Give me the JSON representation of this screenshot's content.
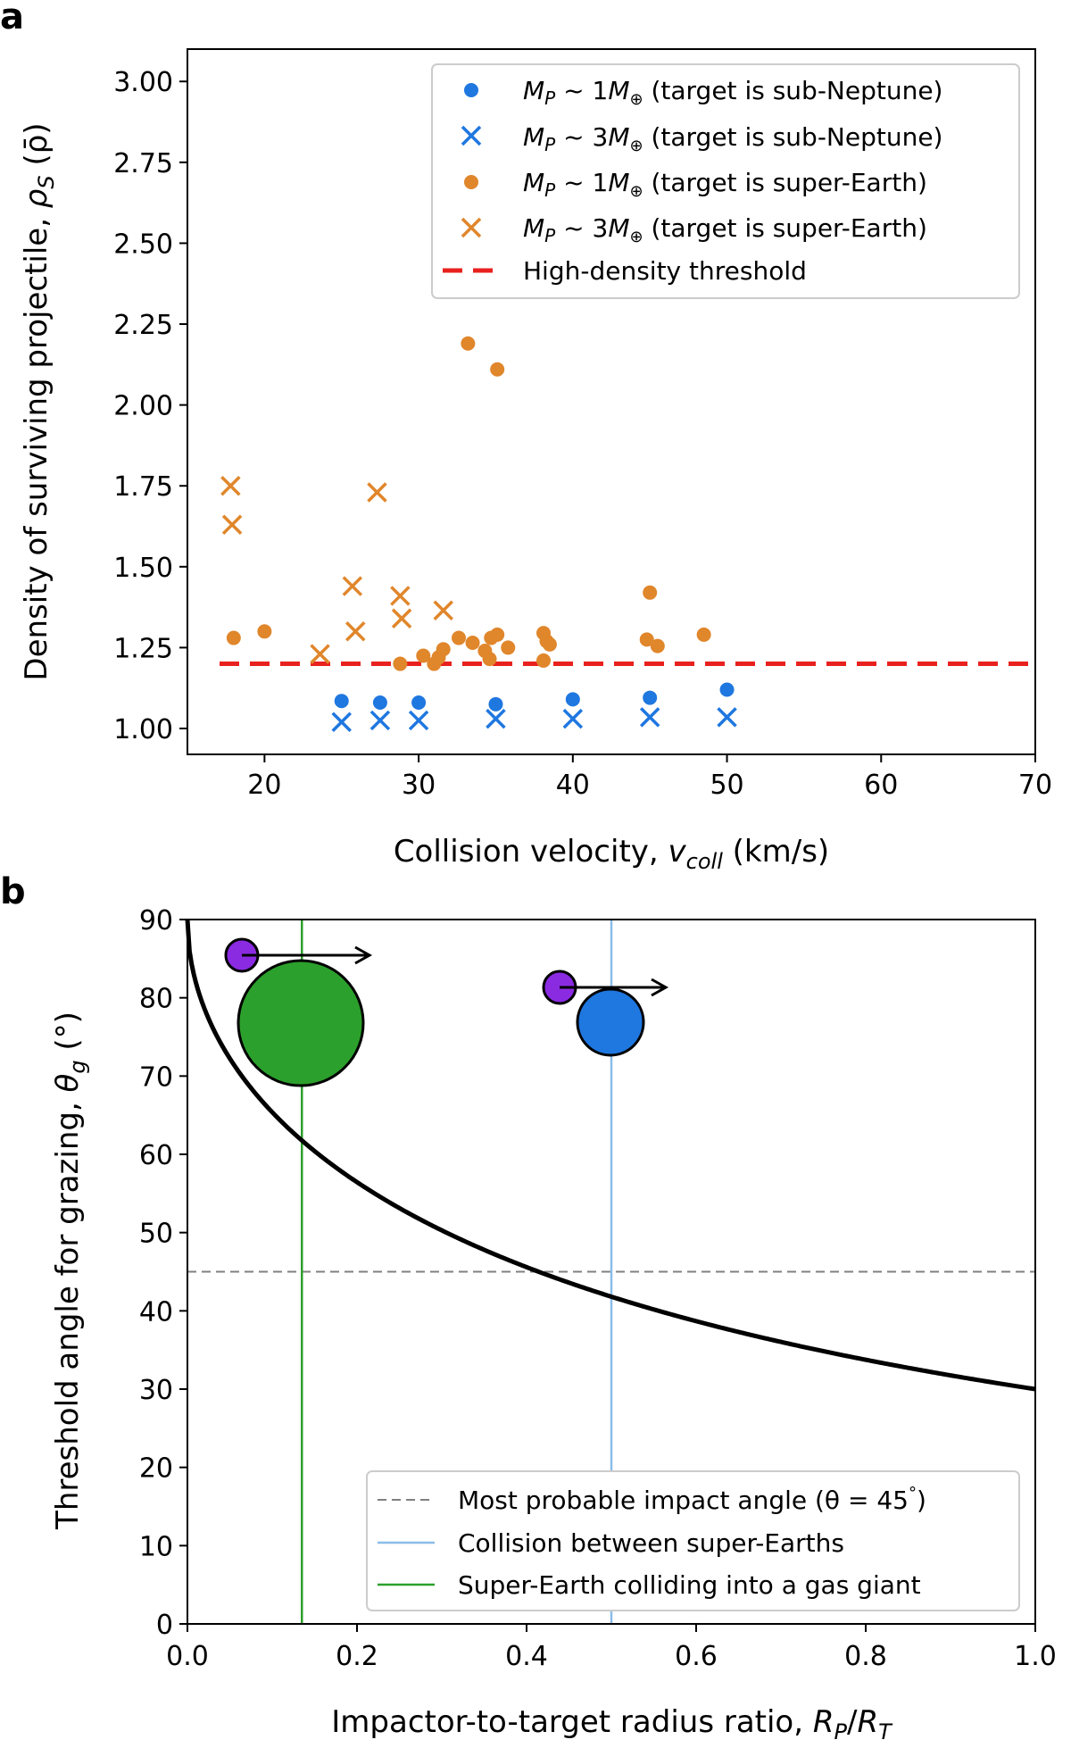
{
  "chart_data": [
    {
      "panel": "a",
      "type": "scatter",
      "xlabel": "Collision velocity, ",
      "xlabel_math": "v",
      "xlabel_sub": "coll",
      "xlabel_unit": " (km/s)",
      "ylabel": "Density of surviving projectile, ",
      "ylabel_math": "ρ",
      "ylabel_sub": "S",
      "ylabel_unit": " (ρ̄)",
      "xlim": [
        15,
        70
      ],
      "ylim": [
        0.92,
        3.1
      ],
      "xticks": [
        20,
        30,
        40,
        50,
        60,
        70
      ],
      "yticks": [
        1.0,
        1.25,
        1.5,
        1.75,
        2.0,
        2.25,
        2.5,
        2.75,
        3.0
      ],
      "yticklabels": [
        "1.00",
        "1.25",
        "1.50",
        "1.75",
        "2.00",
        "2.25",
        "2.50",
        "2.75",
        "3.00"
      ],
      "legend_position": "top-right",
      "series": [
        {
          "name": "sub-Neptune 1M",
          "legend_math": "M",
          "legend_sub": "P",
          "legend_mid": " ~ 1",
          "legend_mass": "M",
          "legend_text": " (target is sub-Neptune)",
          "marker": "circle",
          "color": "#1f77e0",
          "points": [
            [
              25,
              1.085
            ],
            [
              27.5,
              1.08
            ],
            [
              30,
              1.08
            ],
            [
              35,
              1.075
            ],
            [
              40,
              1.09
            ],
            [
              45,
              1.095
            ],
            [
              50,
              1.12
            ]
          ]
        },
        {
          "name": "sub-Neptune 3M",
          "legend_math": "M",
          "legend_sub": "P",
          "legend_mid": " ~ 3",
          "legend_mass": "M",
          "legend_text": " (target is sub-Neptune)",
          "marker": "x",
          "color": "#1f77e0",
          "points": [
            [
              25,
              1.02
            ],
            [
              27.5,
              1.025
            ],
            [
              30,
              1.025
            ],
            [
              35,
              1.03
            ],
            [
              40,
              1.03
            ],
            [
              45,
              1.035
            ],
            [
              50,
              1.035
            ]
          ]
        },
        {
          "name": "super-Earth 1M",
          "legend_math": "M",
          "legend_sub": "P",
          "legend_mid": " ~ 1",
          "legend_mass": "M",
          "legend_text": " (target is super-Earth)",
          "marker": "circle",
          "color": "#e0862b",
          "points": [
            [
              18,
              1.28
            ],
            [
              20,
              1.3
            ],
            [
              28.8,
              1.2
            ],
            [
              30.3,
              1.225
            ],
            [
              31,
              1.2
            ],
            [
              31.3,
              1.22
            ],
            [
              31.6,
              1.245
            ],
            [
              32.6,
              1.28
            ],
            [
              33.2,
              2.19
            ],
            [
              33.5,
              1.265
            ],
            [
              34.3,
              1.24
            ],
            [
              34.6,
              1.215
            ],
            [
              34.7,
              1.28
            ],
            [
              35.1,
              1.29
            ],
            [
              35.1,
              2.11
            ],
            [
              35.8,
              1.25
            ],
            [
              38.1,
              1.295
            ],
            [
              38.1,
              1.21
            ],
            [
              38.3,
              1.27
            ],
            [
              38.5,
              1.26
            ],
            [
              44.8,
              1.275
            ],
            [
              45,
              1.42
            ],
            [
              45.5,
              1.255
            ],
            [
              48.5,
              1.29
            ]
          ]
        },
        {
          "name": "super-Earth 3M",
          "legend_math": "M",
          "legend_sub": "P",
          "legend_mid": " ~ 3",
          "legend_mass": "M",
          "legend_text": " (target is super-Earth)",
          "marker": "x",
          "color": "#e0862b",
          "points": [
            [
              17.8,
              1.75
            ],
            [
              17.9,
              1.63
            ],
            [
              23.6,
              1.23
            ],
            [
              25.7,
              1.44
            ],
            [
              25.9,
              1.3
            ],
            [
              27.3,
              1.73
            ],
            [
              28.8,
              1.41
            ],
            [
              28.9,
              1.34
            ],
            [
              31.6,
              1.365
            ]
          ]
        }
      ],
      "threshold": {
        "label": "High-density threshold",
        "value": 1.2,
        "color": "#e8211e"
      }
    },
    {
      "panel": "b",
      "type": "line",
      "xlabel": "Impactor-to-target radius ratio, ",
      "xlabel_math_a": "R",
      "xlabel_sub_a": "P",
      "xlabel_slash": "/",
      "xlabel_math_b": "R",
      "xlabel_sub_b": "T",
      "ylabel": "Threshold angle for grazing, ",
      "ylabel_math": "θ",
      "ylabel_sub": "g",
      "ylabel_unit": " (°)",
      "xlim": [
        0,
        1
      ],
      "ylim": [
        0,
        90
      ],
      "xticks": [
        0,
        0.2,
        0.4,
        0.6,
        0.8,
        1.0
      ],
      "xticklabels": [
        "0.0",
        "0.2",
        "0.4",
        "0.6",
        "0.8",
        "1.0"
      ],
      "yticks": [
        0,
        10,
        20,
        30,
        40,
        50,
        60,
        70,
        80,
        90
      ],
      "yticklabels": [
        "0",
        "10",
        "20",
        "30",
        "40",
        "50",
        "60",
        "70",
        "80",
        "90"
      ],
      "curve": {
        "name": "grazing threshold",
        "formula": "asin(1/(1+x))",
        "color": "#000000"
      },
      "lines": [
        {
          "name": "Most probable impact angle (θ = 45°)",
          "orientation": "horizontal",
          "value": 45,
          "color": "#808080",
          "style": "dashed"
        },
        {
          "name": "Collision between super-Earths",
          "orientation": "vertical",
          "value": 0.5,
          "color": "#8bbde8",
          "style": "solid"
        },
        {
          "name": "Super-Earth colliding into a gas giant",
          "orientation": "vertical",
          "value": 0.135,
          "color": "#2ca02c",
          "style": "solid"
        }
      ],
      "legend": [
        "Most probable impact angle (θ = 45",
        "°",
        ")",
        "Collision between super-Earths",
        "Super-Earth colliding into a gas giant"
      ],
      "legend_position": "bottom-right",
      "illustration": {
        "impactor_color": "#8a2be2",
        "gas_giant_target_color": "#2ca02c",
        "super_earth_target_color": "#1f77e0"
      }
    }
  ]
}
